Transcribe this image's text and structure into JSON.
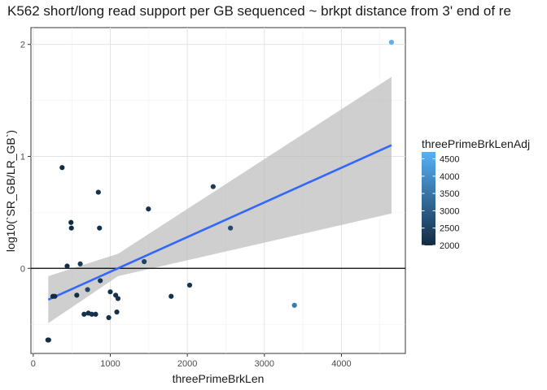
{
  "chart_data": {
    "type": "scatter",
    "title": "K562 short/long read support per GB sequenced ~ brkpt distance from 3' end of re",
    "xlabel": "threePrimeBrkLen",
    "ylabel": "log10(`SR_GB/LR_GB`)",
    "xlim": [
      -30,
      4830
    ],
    "ylim": [
      -0.76,
      2.15
    ],
    "xticks": [
      0,
      1000,
      2000,
      3000,
      4000
    ],
    "xtick_labels": [
      "0",
      "1000",
      "2000",
      "3000",
      "4000"
    ],
    "yticks": [
      0,
      1,
      2
    ],
    "ytick_labels": [
      "0",
      "1",
      "2"
    ],
    "grid": true,
    "hline": 0,
    "legend": {
      "title": "threePrimeBrkLenAdj",
      "placement": "right",
      "range": [
        2000,
        4700
      ],
      "ticks": [
        2000,
        2500,
        3000,
        3500,
        4000,
        4500
      ],
      "tick_labels": [
        "2000",
        "2500",
        "3000",
        "3500",
        "4000",
        "4500"
      ],
      "colors": {
        "low": "#132b43",
        "high": "#56b1f7"
      }
    },
    "fit": {
      "method": "linear",
      "x": [
        195,
        4650
      ],
      "y": [
        -0.28,
        1.1
      ],
      "ribbon_x": [
        195,
        1100,
        4650
      ],
      "ribbon_lower": [
        -0.49,
        -0.07,
        0.49
      ],
      "ribbon_upper": [
        -0.07,
        0.13,
        1.71
      ],
      "line_color": "#3366ff",
      "ribbon_color": "#bdbdbd"
    },
    "points": [
      {
        "x": 190,
        "y": -0.64,
        "c": 2000
      },
      {
        "x": 200,
        "y": -0.64,
        "c": 2000
      },
      {
        "x": 255,
        "y": -0.25,
        "c": 2000
      },
      {
        "x": 280,
        "y": -0.25,
        "c": 2000
      },
      {
        "x": 375,
        "y": 0.9,
        "c": 2000
      },
      {
        "x": 440,
        "y": 0.02,
        "c": 2000
      },
      {
        "x": 490,
        "y": 0.41,
        "c": 2000
      },
      {
        "x": 495,
        "y": 0.36,
        "c": 2000
      },
      {
        "x": 565,
        "y": -0.24,
        "c": 2050
      },
      {
        "x": 610,
        "y": 0.04,
        "c": 2300
      },
      {
        "x": 660,
        "y": -0.41,
        "c": 2100
      },
      {
        "x": 705,
        "y": -0.19,
        "c": 2500
      },
      {
        "x": 715,
        "y": -0.4,
        "c": 2100
      },
      {
        "x": 760,
        "y": -0.41,
        "c": 2150
      },
      {
        "x": 810,
        "y": -0.41,
        "c": 2100
      },
      {
        "x": 845,
        "y": 0.68,
        "c": 2150
      },
      {
        "x": 860,
        "y": 0.36,
        "c": 2100
      },
      {
        "x": 870,
        "y": -0.11,
        "c": 2200
      },
      {
        "x": 980,
        "y": -0.44,
        "c": 2100
      },
      {
        "x": 1000,
        "y": -0.21,
        "c": 2150
      },
      {
        "x": 1070,
        "y": -0.24,
        "c": 2150
      },
      {
        "x": 1085,
        "y": -0.39,
        "c": 2100
      },
      {
        "x": 1100,
        "y": -0.27,
        "c": 2150
      },
      {
        "x": 1440,
        "y": 0.06,
        "c": 2450
      },
      {
        "x": 1495,
        "y": 0.53,
        "c": 2150
      },
      {
        "x": 1790,
        "y": -0.25,
        "c": 2100
      },
      {
        "x": 2030,
        "y": -0.15,
        "c": 2200
      },
      {
        "x": 2335,
        "y": 0.73,
        "c": 2350
      },
      {
        "x": 2560,
        "y": 0.36,
        "c": 2650
      },
      {
        "x": 3390,
        "y": -0.33,
        "c": 3600
      },
      {
        "x": 4650,
        "y": 2.02,
        "c": 4700
      }
    ]
  }
}
